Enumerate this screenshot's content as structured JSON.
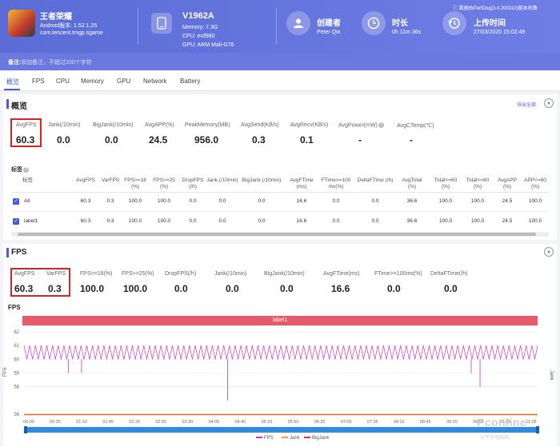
{
  "header": {
    "app": {
      "name": "王者荣耀",
      "android_version": "Android版本: 1.52.1.25",
      "package": "com.tencent.tmgp.sgame"
    },
    "device": {
      "model": "V1962A",
      "memory": "Memory: 7.3G",
      "cpu": "CPU: erd980",
      "gpu": "GPU: ARM Mali-G76"
    },
    "creator": {
      "label": "创建者",
      "value": "Peter Qin"
    },
    "duration": {
      "label": "时长",
      "value": "0h 11m 36s"
    },
    "upload": {
      "label": "上传时间",
      "value": "27/03/2020 15:02:49"
    },
    "source": "数据由PerfDog(3.4.200310)版本收集",
    "note_label": "备注:",
    "note_placeholder": "添加备注，不超过200个字符"
  },
  "tabs": [
    "概览",
    "FPS",
    "CPU",
    "Memory",
    "GPU",
    "Network",
    "Battery"
  ],
  "overview": {
    "title": "概览",
    "export_label": "导出全部",
    "metrics": [
      {
        "label": "AvgFPS",
        "value": "60.3"
      },
      {
        "label": "Jank(/10min)",
        "value": "0.0"
      },
      {
        "label": "BigJank(/10min)",
        "value": "0.0"
      },
      {
        "label": "AvgAPP(%)",
        "value": "24.5"
      },
      {
        "label": "PeakMemory(MB)",
        "value": "956.0"
      },
      {
        "label": "AvgSend(KB/s)",
        "value": "0.3"
      },
      {
        "label": "AvgRecv(KB/s)",
        "value": "0.1"
      },
      {
        "label": "AvgPower(mW)",
        "value": "-"
      },
      {
        "label": "AvgCTemp(℃)",
        "value": "-"
      }
    ],
    "table_label": "标签",
    "table": {
      "columns": [
        "标签",
        "AvgFPS",
        "VarFPS",
        "FPS>=18 (%)",
        "FPS>=25 (%)",
        "DropFPS (/h)",
        "Jank (/10min)",
        "BigJank (/10min)",
        "AvgFTime (ms)",
        "FTime>=100 ms(%)",
        "DeltaFTime (/h)",
        "AvgTotal (%)",
        "Total<=60 (%)",
        "Total<=80 (%)",
        "AvgAPP (%)",
        "APP<=60 (%)"
      ],
      "rows": [
        [
          "All",
          "60.3",
          "0.3",
          "100.0",
          "100.0",
          "0.0",
          "0.0",
          "0.0",
          "16.6",
          "0.0",
          "0.0",
          "36.6",
          "100.0",
          "100.0",
          "24.5",
          "100.0"
        ],
        [
          "label1",
          "60.3",
          "0.3",
          "100.0",
          "100.0",
          "0.0",
          "0.0",
          "0.0",
          "16.6",
          "0.0",
          "0.0",
          "36.6",
          "100.0",
          "100.0",
          "24.5",
          "100.0"
        ]
      ]
    }
  },
  "fps_section": {
    "title": "FPS",
    "metrics": [
      {
        "label": "AvgFPS",
        "value": "60.3"
      },
      {
        "label": "VarFPS",
        "value": "0.3"
      },
      {
        "label": "FPS>=18(%)",
        "value": "100.0"
      },
      {
        "label": "FPS>=25(%)",
        "value": "100.0"
      },
      {
        "label": "DropFPS(/h)",
        "value": "0.0"
      },
      {
        "label": "Jank(/10min)",
        "value": "0.0"
      },
      {
        "label": "BigJank(/10min)",
        "value": "0.0"
      },
      {
        "label": "AvgFTime(ms)",
        "value": "16.6"
      },
      {
        "label": "FTime>=100ms(%)",
        "value": "0.0"
      },
      {
        "label": "DeltaFTime(/h)",
        "value": "0.0"
      }
    ]
  },
  "chart_data": {
    "type": "line",
    "title": "FPS",
    "band_label": "label1",
    "ylabel": "FPS",
    "ylabel_right": "Jank",
    "ylim": [
      56,
      62
    ],
    "yticks": [
      "62",
      "61",
      "60",
      "59",
      "58",
      "56"
    ],
    "xticks": [
      "00:00",
      "00:35",
      "01:10",
      "01:45",
      "02:20",
      "02:55",
      "03:30",
      "04:05",
      "04:40",
      "05:15",
      "05:50",
      "06:25",
      "07:00",
      "07:35",
      "08:10",
      "08:45",
      "09:20",
      "09:55",
      "10:30",
      "11:05"
    ],
    "series": [
      {
        "name": "FPS",
        "color": "#c837b8",
        "pattern": "oscillates between 60 and 61 with drops to ~59 at 01:10, ~58.9 at 00:35, ~57 at 04:40, ~58 at 10:05"
      },
      {
        "name": "Jank",
        "color": "#f0a030",
        "values_constant": 0
      },
      {
        "name": "BigJank",
        "color": "#e83030",
        "values_constant": 0
      }
    ],
    "dips": [
      {
        "t": 1.0,
        "v": 59
      },
      {
        "t": 1.3,
        "v": 59
      },
      {
        "t": 4.6,
        "v": 57
      },
      {
        "t": 10.1,
        "v": 59
      },
      {
        "t": 10.3,
        "v": 58
      }
    ]
  },
  "watermark": {
    "main": "Pconline",
    "sub": "太平洋电脑网"
  }
}
